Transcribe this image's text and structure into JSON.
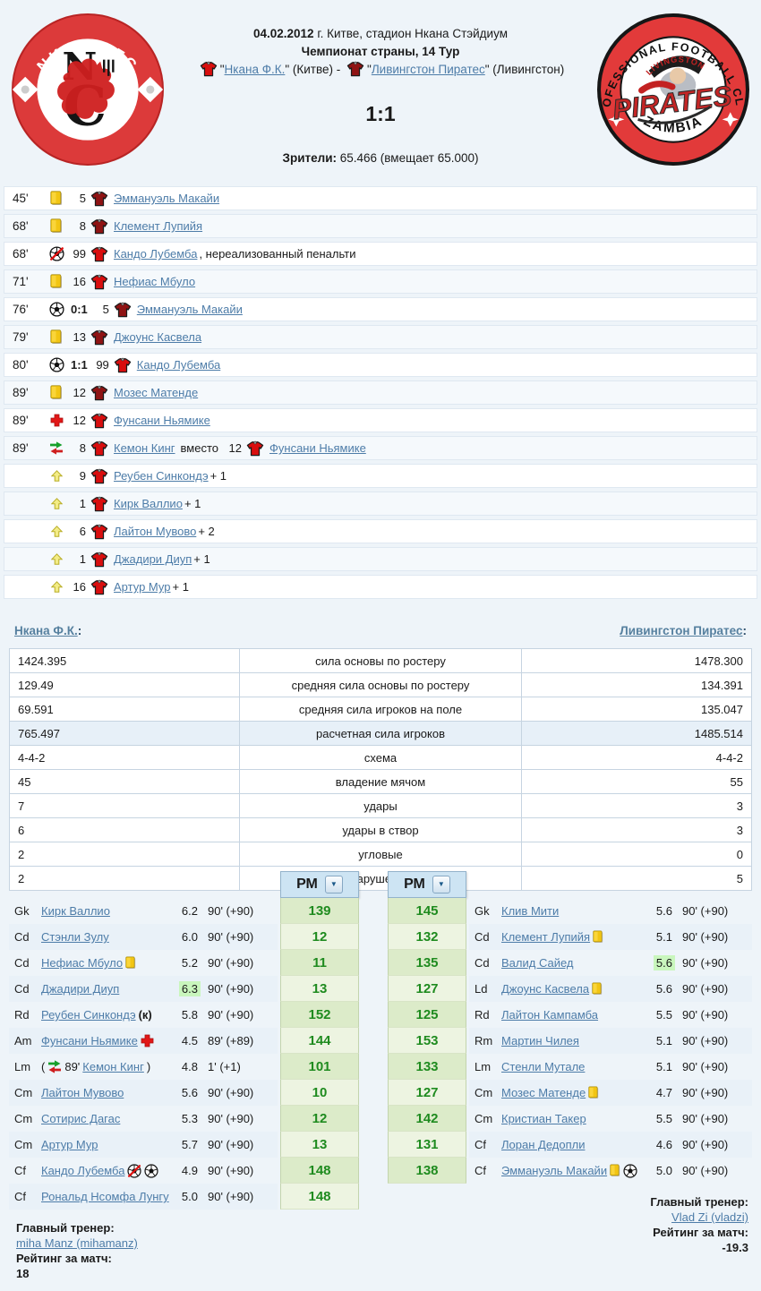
{
  "header": {
    "date": "04.02.2012",
    "venue": " г. Китве, стадион Нкана Стэйдиум",
    "tournament": "Чемпионат страны, 14 Тур",
    "home_pre": "\"",
    "home_name": "Нкана Ф.К.",
    "home_tail": "\" (Китве) - ",
    "away_pre": "\"",
    "away_name": "Ливингстон Пиратес",
    "away_tail": "\" (Ливингстон)",
    "score": "1:1",
    "attendance_label": "Зрители:",
    "attendance_value": " 65.466 (вмещает 65.000)"
  },
  "events": [
    {
      "minute": "45'",
      "icon": "yellow-card",
      "number": "5",
      "team": "away",
      "player": "Эммануэль Макайи"
    },
    {
      "minute": "68'",
      "icon": "yellow-card",
      "number": "8",
      "team": "away",
      "player": "Клемент Лупийя"
    },
    {
      "minute": "68'",
      "icon": "penalty-missed",
      "number": "99",
      "team": "home",
      "player": "Кандо Лубемба",
      "after": ", нереализованный пенальти"
    },
    {
      "minute": "71'",
      "icon": "yellow-card",
      "number": "16",
      "team": "home",
      "player": "Нефиас Мбуло"
    },
    {
      "minute": "76'",
      "icon": "goal",
      "score": "0:1",
      "number": "5",
      "team": "away",
      "player": "Эммануэль Макайи"
    },
    {
      "minute": "79'",
      "icon": "yellow-card",
      "number": "13",
      "team": "away",
      "player": "Джоунс Касвела"
    },
    {
      "minute": "80'",
      "icon": "goal",
      "score": "1:1",
      "number": "99",
      "team": "home",
      "player": "Кандо Лубемба"
    },
    {
      "minute": "89'",
      "icon": "yellow-card",
      "number": "12",
      "team": "away",
      "player": "Мозес Матенде"
    },
    {
      "minute": "89'",
      "icon": "injury",
      "number": "12",
      "team": "home",
      "player": "Фунсани Ньямике"
    },
    {
      "minute": "89'",
      "icon": "substitution",
      "number": "8",
      "team": "home",
      "player": "Кемон Кинг",
      "mid": "вместо",
      "number2": "12",
      "team2": "home",
      "player2": "Фунсани Ньямике"
    },
    {
      "minute": "",
      "icon": "bonus",
      "number": "9",
      "team": "home",
      "player": "Реубен Синкондэ",
      "after": " + 1"
    },
    {
      "minute": "",
      "icon": "bonus",
      "number": "1",
      "team": "home",
      "player": "Кирк Валлио",
      "after": " + 1"
    },
    {
      "minute": "",
      "icon": "bonus",
      "number": "6",
      "team": "home",
      "player": "Лайтон Мувово",
      "after": " + 2"
    },
    {
      "minute": "",
      "icon": "bonus",
      "number": "1",
      "team": "home",
      "player": "Джадири Диуп",
      "after": " + 1"
    },
    {
      "minute": "",
      "icon": "bonus",
      "number": "16",
      "team": "home",
      "player": "Артур Мур",
      "after": " + 1"
    }
  ],
  "teams": {
    "home": "Нкана Ф.К.",
    "away": "Ливингстон Пиратес",
    "colon": ":"
  },
  "stats": [
    {
      "home": "1424.395",
      "label": "сила основы по ростеру",
      "away": "1478.300"
    },
    {
      "home": "129.49",
      "label": "средняя сила основы по ростеру",
      "away": "134.391"
    },
    {
      "home": "69.591",
      "label": "средняя сила игроков на поле",
      "away": "135.047"
    },
    {
      "home": "765.497",
      "label": "расчетная сила игроков",
      "away": "1485.514",
      "highlight": true
    },
    {
      "home": "4-4-2",
      "label": "схема",
      "away": "4-4-2"
    },
    {
      "home": "45",
      "label": "владение мячом",
      "away": "55"
    },
    {
      "home": "7",
      "label": "удары",
      "away": "3"
    },
    {
      "home": "6",
      "label": "удары в створ",
      "away": "3"
    },
    {
      "home": "2",
      "label": "угловые",
      "away": "0"
    },
    {
      "home": "2",
      "label": "нарушения",
      "away": "5"
    }
  ],
  "pm": {
    "label": "РМ"
  },
  "lineups": {
    "home": [
      {
        "pos": "Gk",
        "name": "Кирк Валлио",
        "rating": "6.2",
        "minutes": "90' (+90)",
        "pm": "139"
      },
      {
        "pos": "Cd",
        "name": "Стэнли Зулу",
        "rating": "6.0",
        "minutes": "90' (+90)",
        "pm": "12"
      },
      {
        "pos": "Cd",
        "name": "Нефиас Мбуло",
        "icons": [
          "yellow"
        ],
        "rating": "5.2",
        "minutes": "90' (+90)",
        "pm": "11"
      },
      {
        "pos": "Cd",
        "name": "Джадири Диуп",
        "rating": "6.3",
        "rating_hl": true,
        "minutes": "90' (+90)",
        "pm": "13"
      },
      {
        "pos": "Rd",
        "name": "Реубен Синкондэ",
        "captain": " (к)",
        "rating": "5.8",
        "minutes": "90' (+90)",
        "pm": "152"
      },
      {
        "pos": "Am",
        "name": "Фунсани Ньямике",
        "icons": [
          "injury"
        ],
        "rating": "4.5",
        "minutes": "89' (+89)",
        "pm": "144"
      },
      {
        "pos": "Lm",
        "name": "Кемон Кинг",
        "sub_minute": "89'",
        "rating": "4.8",
        "minutes": "1' (+1)",
        "pm": "101"
      },
      {
        "pos": "Cm",
        "name": "Лайтон Мувово",
        "rating": "5.6",
        "minutes": "90' (+90)",
        "pm": "10"
      },
      {
        "pos": "Cm",
        "name": "Сотирис Дагас",
        "rating": "5.3",
        "minutes": "90' (+90)",
        "pm": "12"
      },
      {
        "pos": "Cm",
        "name": "Артур Мур",
        "rating": "5.7",
        "minutes": "90' (+90)",
        "pm": "13"
      },
      {
        "pos": "Cf",
        "name": "Кандо Лубемба",
        "icons": [
          "penalty-missed",
          "goal"
        ],
        "rating": "4.9",
        "minutes": "90' (+90)",
        "pm": "148"
      },
      {
        "pos": "Cf",
        "name": "Рональд Нсомфа Лунгу",
        "rating": "5.0",
        "minutes": "90' (+90)",
        "pm": "148"
      }
    ],
    "away": [
      {
        "pos": "Gk",
        "name": "Клив Мити",
        "rating": "5.6",
        "minutes": "90' (+90)",
        "pm": "145"
      },
      {
        "pos": "Cd",
        "name": "Клемент Лупийя",
        "icons": [
          "yellow"
        ],
        "rating": "5.1",
        "minutes": "90' (+90)",
        "pm": "132"
      },
      {
        "pos": "Cd",
        "name": "Валид Сайед",
        "rating": "5.6",
        "rating_hl": true,
        "minutes": "90' (+90)",
        "pm": "135"
      },
      {
        "pos": "Ld",
        "name": "Джоунс Касвела",
        "icons": [
          "yellow"
        ],
        "rating": "5.6",
        "minutes": "90' (+90)",
        "pm": "127"
      },
      {
        "pos": "Rd",
        "name": "Лайтон Кампамба",
        "rating": "5.5",
        "minutes": "90' (+90)",
        "pm": "125"
      },
      {
        "pos": "Rm",
        "name": "Мартин Чилея",
        "rating": "5.1",
        "minutes": "90' (+90)",
        "pm": "153"
      },
      {
        "pos": "Lm",
        "name": "Стенли Мутале",
        "rating": "5.1",
        "minutes": "90' (+90)",
        "pm": "133"
      },
      {
        "pos": "Cm",
        "name": "Мозес Матенде",
        "icons": [
          "yellow"
        ],
        "rating": "4.7",
        "minutes": "90' (+90)",
        "pm": "127"
      },
      {
        "pos": "Cm",
        "name": "Кристиан Такер",
        "rating": "5.5",
        "minutes": "90' (+90)",
        "pm": "142"
      },
      {
        "pos": "Cf",
        "name": "Лоран Дедопли",
        "rating": "4.6",
        "minutes": "90' (+90)",
        "pm": "131"
      },
      {
        "pos": "Cf",
        "name": "Эммануэль Макайи",
        "icons": [
          "yellow",
          "goal"
        ],
        "rating": "5.0",
        "minutes": "90' (+90)",
        "pm": "138"
      }
    ]
  },
  "coaches": {
    "home": {
      "label": "Главный тренер:",
      "name": "miha Manz (mihamanz)",
      "rating_label": "Рейтинг за матч:",
      "rating": "18"
    },
    "away": {
      "label": "Главный тренер:",
      "name": "Vlad Zi (vladzi)",
      "rating_label": "Рейтинг за матч:",
      "rating": "-19.3"
    }
  },
  "logos": {
    "home": {
      "top": "NKANA FC",
      "bottom": "• KALAMPA •",
      "mono_top": "N",
      "mono_bottom": "C"
    },
    "away": {
      "top": "PROFESSIONAL FOOTBALL CLUB",
      "bottom": "ZAMBIA",
      "club": "LIVINGSTON",
      "name": "PIRATES"
    }
  },
  "colors": {
    "home_shirt": "#d90e0e",
    "away_shirt": "#8f1313",
    "link": "#4d7ca8",
    "pm_number": "#1f8b1f",
    "accent_red": "#d93636"
  }
}
